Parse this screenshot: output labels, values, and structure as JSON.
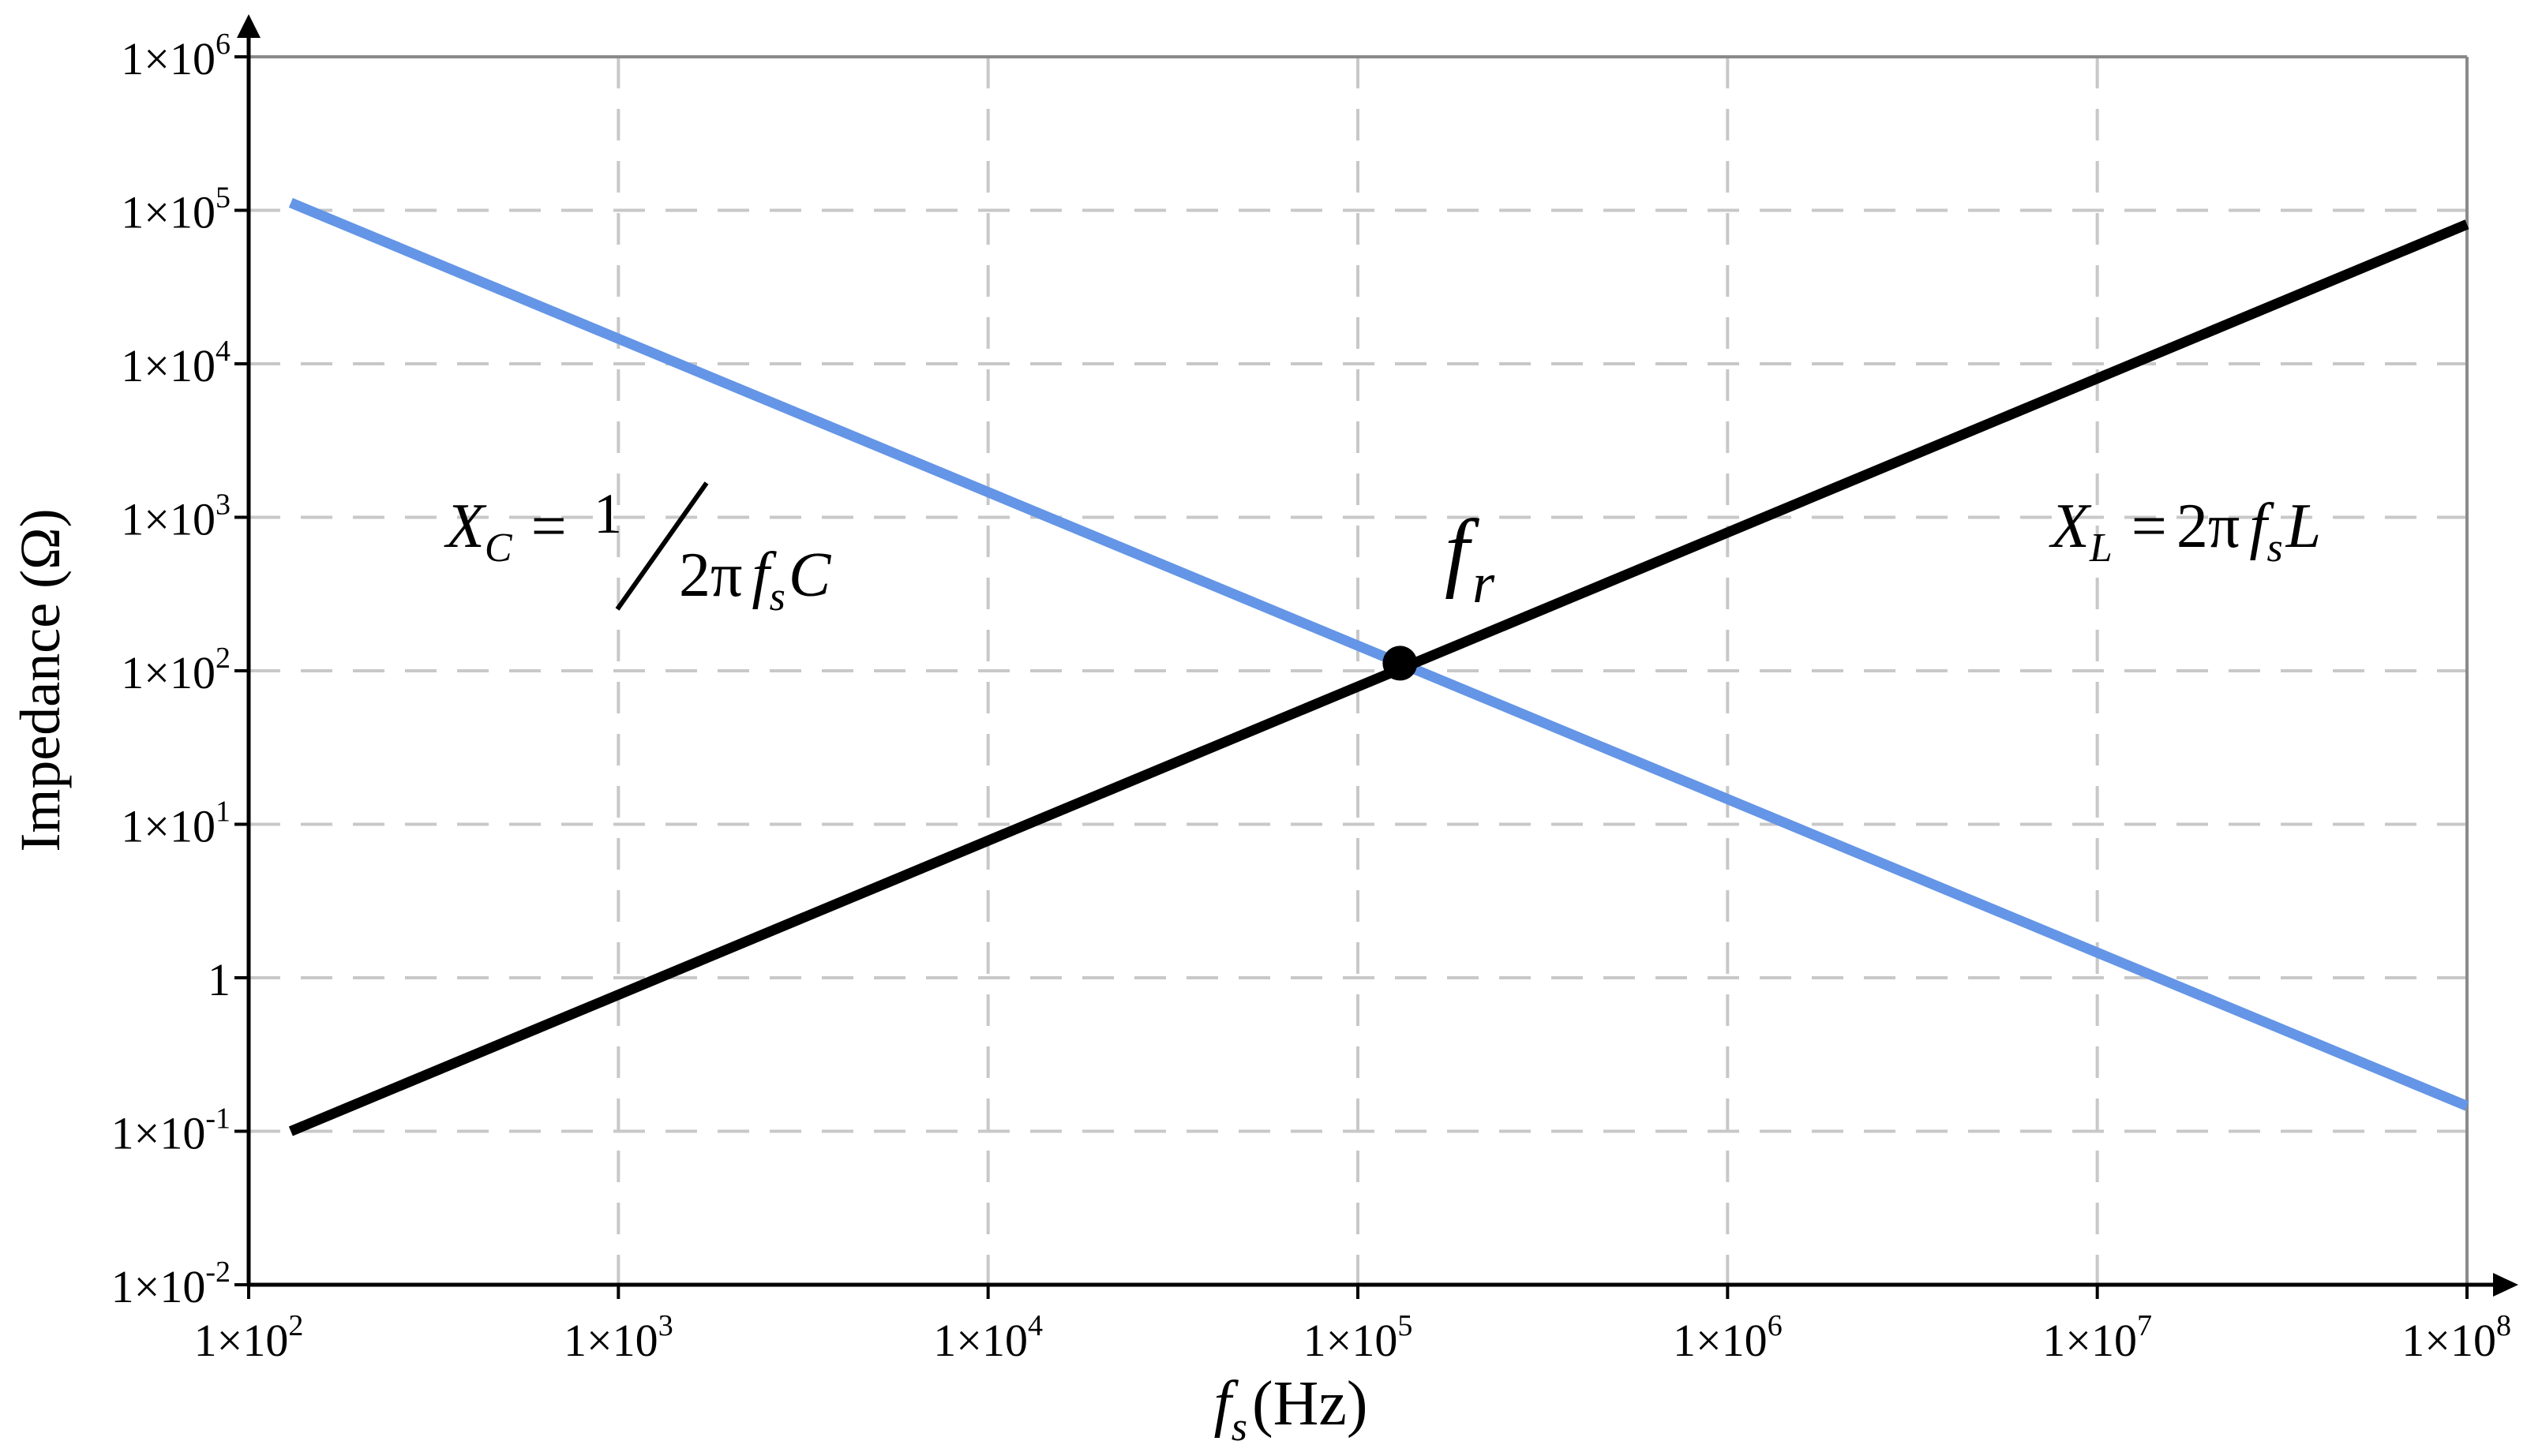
{
  "chart_data": {
    "type": "line",
    "title": "",
    "xlabel": {
      "var": "f",
      "sub": "s",
      "unit": "(Hz)"
    },
    "ylabel": "Impedance (Ω)",
    "x_scale": "log",
    "y_scale": "log",
    "xlim": [
      100,
      100000000
    ],
    "ylim": [
      0.01,
      1000000
    ],
    "grid": true,
    "x_ticks": [
      {
        "value": 100,
        "mantissa": "1×10",
        "exponent": "2"
      },
      {
        "value": 1000,
        "mantissa": "1×10",
        "exponent": "3"
      },
      {
        "value": 10000,
        "mantissa": "1×10",
        "exponent": "4"
      },
      {
        "value": 100000,
        "mantissa": "1×10",
        "exponent": "5"
      },
      {
        "value": 1000000,
        "mantissa": "1×10",
        "exponent": "6"
      },
      {
        "value": 10000000,
        "mantissa": "1×10",
        "exponent": "7"
      },
      {
        "value": 100000000,
        "mantissa": "1×10",
        "exponent": "8"
      }
    ],
    "y_ticks": [
      {
        "value": 0.01,
        "mantissa": "1×10",
        "exponent": "-2"
      },
      {
        "value": 0.1,
        "mantissa": "1×10",
        "exponent": "-1"
      },
      {
        "value": 1,
        "mantissa": "1",
        "exponent": ""
      },
      {
        "value": 10,
        "mantissa": "1×10",
        "exponent": "1"
      },
      {
        "value": 100,
        "mantissa": "1×10",
        "exponent": "2"
      },
      {
        "value": 1000,
        "mantissa": "1×10",
        "exponent": "3"
      },
      {
        "value": 10000,
        "mantissa": "1×10",
        "exponent": "4"
      },
      {
        "value": 100000,
        "mantissa": "1×10",
        "exponent": "5"
      },
      {
        "value": 1000000,
        "mantissa": "1×10",
        "exponent": "6"
      }
    ],
    "series": [
      {
        "color": "#6495e6",
        "x": [
          130,
          100000000
        ],
        "y": [
          112000,
          0.146
        ]
      },
      {
        "color": "#000000",
        "x": [
          130,
          100000000
        ],
        "y": [
          0.1,
          81000
        ]
      }
    ],
    "resonance_point": {
      "x": 130000,
      "y": 112,
      "label": "f",
      "label_sub": "r"
    },
    "annotations": {
      "xc": {
        "var": "X",
        "sub": "C",
        "eq": "=",
        "num": "1",
        "den_a": "2π",
        "den_f": "f",
        "den_s": "s",
        "den_c": "C"
      },
      "xl": {
        "var": "X",
        "sub": "L",
        "eq": "=",
        "rhs_a": "2π",
        "rhs_f": "f",
        "rhs_s": "s",
        "rhs_l": "L"
      }
    }
  }
}
